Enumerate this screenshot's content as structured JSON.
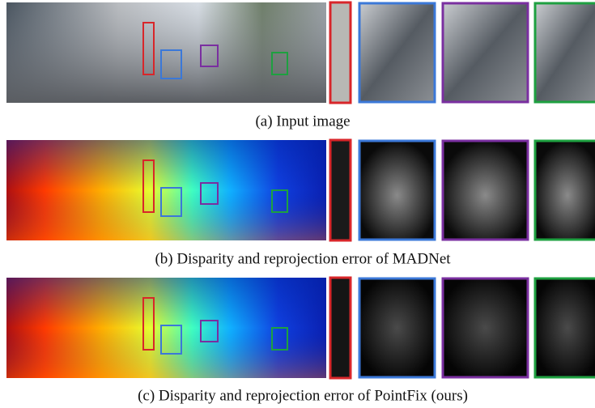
{
  "figure": {
    "rows": [
      {
        "caption": "(a) Input image"
      },
      {
        "caption": "(b) Disparity and reprojection error of MADNet"
      },
      {
        "caption": "(c) Disparity and reprojection error of PointFix (ours)"
      }
    ]
  }
}
